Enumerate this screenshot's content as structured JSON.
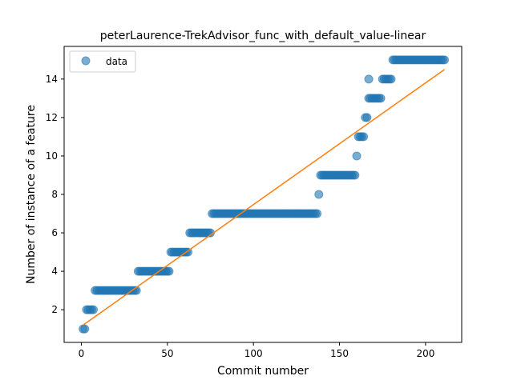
{
  "chart_data": {
    "type": "scatter",
    "title": "peterLaurence-TrekAdvisor_func_with_default_value-linear",
    "xlabel": "Commit number",
    "ylabel": "Number of instance of a feature",
    "xlim": [
      -10,
      221
    ],
    "ylim": [
      0.3,
      15.7
    ],
    "xticks": [
      0,
      50,
      100,
      150,
      200
    ],
    "yticks": [
      2,
      4,
      6,
      8,
      10,
      12,
      14
    ],
    "grid": false,
    "legend": {
      "position": "top-left",
      "entries": [
        "data"
      ]
    },
    "colors": {
      "data": "#1f77b4",
      "fit": "#ff7f0e"
    },
    "series": [
      {
        "name": "data",
        "kind": "scatter",
        "segments": [
          {
            "x_from": 1,
            "x_to": 2,
            "y": 1
          },
          {
            "x_from": 3,
            "x_to": 7,
            "y": 2
          },
          {
            "x_from": 8,
            "x_to": 32,
            "y": 3
          },
          {
            "x_from": 33,
            "x_to": 51,
            "y": 4
          },
          {
            "x_from": 52,
            "x_to": 62,
            "y": 5
          },
          {
            "x_from": 63,
            "x_to": 75,
            "y": 6
          },
          {
            "x_from": 76,
            "x_to": 137,
            "y": 7
          },
          {
            "x_from": 138,
            "x_to": 138,
            "y": 8
          },
          {
            "x_from": 139,
            "x_to": 159,
            "y": 9
          },
          {
            "x_from": 160,
            "x_to": 160,
            "y": 10
          },
          {
            "x_from": 161,
            "x_to": 164,
            "y": 11
          },
          {
            "x_from": 165,
            "x_to": 166,
            "y": 12
          },
          {
            "x_from": 167,
            "x_to": 174,
            "y": 13
          },
          {
            "x_from": 167,
            "x_to": 167,
            "y": 14
          },
          {
            "x_from": 175,
            "x_to": 180,
            "y": 14
          },
          {
            "x_from": 181,
            "x_to": 211,
            "y": 15
          }
        ]
      },
      {
        "name": "",
        "kind": "line",
        "x": [
          1,
          211
        ],
        "y": [
          1.2,
          14.5
        ]
      }
    ]
  }
}
